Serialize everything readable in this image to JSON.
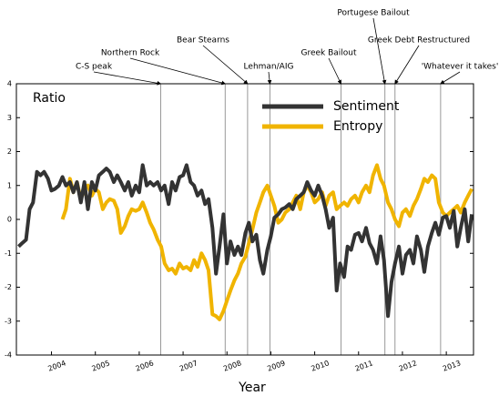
{
  "chart_data": {
    "type": "line",
    "ylabel": "Ratio",
    "xlabel": "Year",
    "x": [
      2003.25,
      2003.33,
      2003.42,
      2003.5,
      2003.58,
      2003.67,
      2003.75,
      2003.83,
      2003.92,
      2004,
      2004.08,
      2004.17,
      2004.25,
      2004.33,
      2004.42,
      2004.5,
      2004.58,
      2004.67,
      2004.75,
      2004.83,
      2004.92,
      2005,
      2005.08,
      2005.17,
      2005.25,
      2005.33,
      2005.42,
      2005.5,
      2005.58,
      2005.67,
      2005.75,
      2005.83,
      2005.92,
      2006,
      2006.08,
      2006.17,
      2006.25,
      2006.33,
      2006.42,
      2006.5,
      2006.58,
      2006.67,
      2006.75,
      2006.83,
      2006.92,
      2007,
      2007.08,
      2007.17,
      2007.25,
      2007.33,
      2007.42,
      2007.5,
      2007.58,
      2007.67,
      2007.75,
      2007.83,
      2007.92,
      2008,
      2008.08,
      2008.17,
      2008.25,
      2008.33,
      2008.42,
      2008.5,
      2008.58,
      2008.67,
      2008.75,
      2008.83,
      2008.92,
      2009,
      2009.08,
      2009.17,
      2009.25,
      2009.33,
      2009.42,
      2009.5,
      2009.58,
      2009.67,
      2009.75,
      2009.83,
      2009.92,
      2010,
      2010.08,
      2010.17,
      2010.25,
      2010.33,
      2010.42,
      2010.5,
      2010.58,
      2010.67,
      2010.75,
      2010.83,
      2010.92,
      2011,
      2011.08,
      2011.17,
      2011.25,
      2011.33,
      2011.42,
      2011.5,
      2011.58,
      2011.67,
      2011.75,
      2011.83,
      2011.92,
      2012,
      2012.08,
      2012.17,
      2012.25,
      2012.33,
      2012.42,
      2012.5,
      2012.58,
      2012.67,
      2012.75,
      2012.83,
      2012.92,
      2013,
      2013.08,
      2013.17,
      2013.25,
      2013.33,
      2013.42,
      2013.5,
      2013.58
    ],
    "series": [
      {
        "name": "Sentiment",
        "color": "#333333",
        "values": [
          -0.8,
          -0.7,
          -0.6,
          0.3,
          0.5,
          1.4,
          1.3,
          1.4,
          1.2,
          0.85,
          0.9,
          1.0,
          1.25,
          1.0,
          1.1,
          0.8,
          1.1,
          0.5,
          1.1,
          0.3,
          1.1,
          0.85,
          1.3,
          1.4,
          1.5,
          1.4,
          1.1,
          1.3,
          1.1,
          0.85,
          1.1,
          0.7,
          1.0,
          0.8,
          1.6,
          1.0,
          1.1,
          1.0,
          1.1,
          0.85,
          1.0,
          0.45,
          1.1,
          0.85,
          1.25,
          1.3,
          1.6,
          1.1,
          1.0,
          0.7,
          0.85,
          0.45,
          0.6,
          -0.25,
          -1.6,
          -0.8,
          0.15,
          -1.3,
          -0.65,
          -1.05,
          -0.8,
          -1.05,
          -0.4,
          -0.1,
          -0.65,
          -0.45,
          -1.2,
          -1.6,
          -0.9,
          -0.5,
          0.05,
          0.15,
          0.3,
          0.35,
          0.45,
          0.3,
          0.6,
          0.7,
          0.8,
          1.1,
          0.85,
          0.7,
          1.0,
          0.7,
          0.3,
          -0.25,
          0.05,
          -2.1,
          -1.3,
          -1.7,
          -0.8,
          -0.9,
          -0.45,
          -0.4,
          -0.65,
          -0.25,
          -0.7,
          -0.9,
          -1.3,
          -0.5,
          -1.2,
          -2.85,
          -1.85,
          -1.3,
          -0.8,
          -1.6,
          -1.05,
          -0.9,
          -1.3,
          -0.5,
          -0.9,
          -1.55,
          -0.8,
          -0.4,
          -0.1,
          -0.45,
          0.05,
          0.1,
          -0.25,
          0.25,
          -0.8,
          -0.25,
          0.3,
          -0.65,
          0.15
        ]
      },
      {
        "name": "Entropy",
        "color": "#f0b400",
        "values": [
          null,
          null,
          null,
          null,
          null,
          null,
          null,
          null,
          null,
          null,
          null,
          null,
          0.0,
          0.3,
          1.2,
          0.8,
          1.1,
          0.6,
          0.9,
          1.0,
          0.7,
          0.9,
          0.8,
          0.3,
          0.5,
          0.6,
          0.55,
          0.3,
          -0.4,
          -0.2,
          0.1,
          0.3,
          0.25,
          0.3,
          0.5,
          0.2,
          -0.1,
          -0.3,
          -0.6,
          -0.8,
          -1.3,
          -1.5,
          -1.45,
          -1.6,
          -1.3,
          -1.45,
          -1.4,
          -1.5,
          -1.2,
          -1.4,
          -1.0,
          -1.2,
          -1.5,
          -2.8,
          -2.85,
          -2.95,
          -2.7,
          -2.4,
          -2.1,
          -1.8,
          -1.6,
          -1.3,
          -1.1,
          -0.7,
          -0.3,
          0.2,
          0.5,
          0.8,
          1.0,
          0.7,
          0.4,
          -0.1,
          0.0,
          0.2,
          0.3,
          0.5,
          0.7,
          0.3,
          0.8,
          1.0,
          0.8,
          0.5,
          0.6,
          0.8,
          0.4,
          0.7,
          0.8,
          0.3,
          0.4,
          0.5,
          0.4,
          0.6,
          0.7,
          0.5,
          0.8,
          1.0,
          0.8,
          1.3,
          1.6,
          1.2,
          1.0,
          0.5,
          0.3,
          0.0,
          -0.2,
          0.2,
          0.3,
          0.1,
          0.4,
          0.6,
          0.9,
          1.2,
          1.1,
          1.3,
          1.2,
          0.5,
          0.2,
          0.1,
          0.2,
          0.3,
          0.4,
          0.2,
          0.5,
          0.7,
          0.9
        ]
      }
    ],
    "annotations": [
      {
        "label": "C-S peak",
        "x": 2006.49
      },
      {
        "label": "Northern Rock",
        "x": 2007.96
      },
      {
        "label": "Bear Stearns",
        "x": 2008.47
      },
      {
        "label": "Lehman/AIG",
        "x": 2008.98
      },
      {
        "label": "Greek Bailout",
        "x": 2010.6
      },
      {
        "label": "Portugese Bailout",
        "x": 2011.6
      },
      {
        "label": "Greek Debt Restructured",
        "x": 2011.83
      },
      {
        "label": "'Whatever it takes'",
        "x": 2012.87
      }
    ],
    "xlim": [
      2003.2,
      2013.62
    ],
    "xticks": [
      2004,
      2005,
      2006,
      2007,
      2008,
      2009,
      2010,
      2011,
      2012,
      2013
    ],
    "ylim": [
      -4,
      4
    ],
    "yticks": [
      -4,
      -3,
      -2,
      -1,
      0,
      1,
      2,
      3,
      4
    ],
    "grid": false,
    "legend": "top"
  }
}
